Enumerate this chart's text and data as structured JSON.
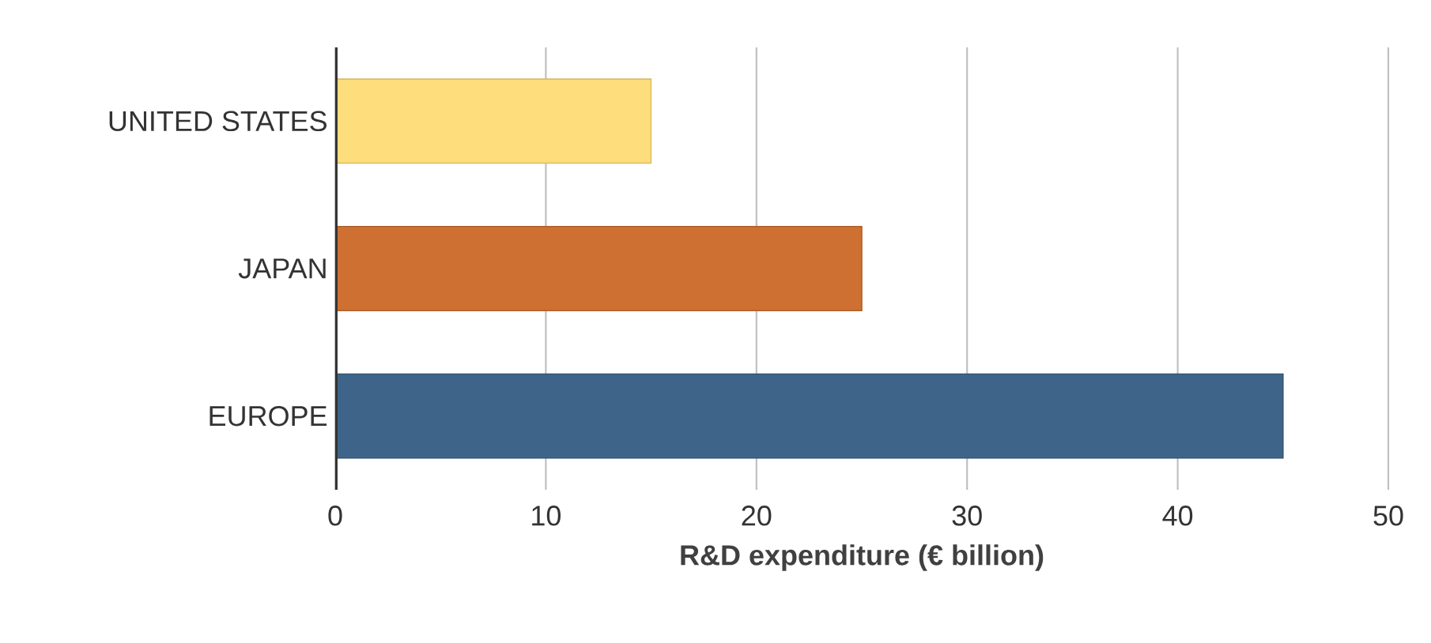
{
  "chart_data": {
    "type": "bar",
    "orientation": "horizontal",
    "categories": [
      "UNITED STATES",
      "JAPAN",
      "EUROPE"
    ],
    "values": [
      15,
      25,
      45
    ],
    "colors": [
      "#fedd7d",
      "#cd7032",
      "#3e6589"
    ],
    "xlabel": "R&D expenditure (€ billion)",
    "xlim": [
      0,
      50
    ],
    "xticks": [
      0,
      10,
      20,
      30,
      40,
      50
    ],
    "grid": "x"
  }
}
